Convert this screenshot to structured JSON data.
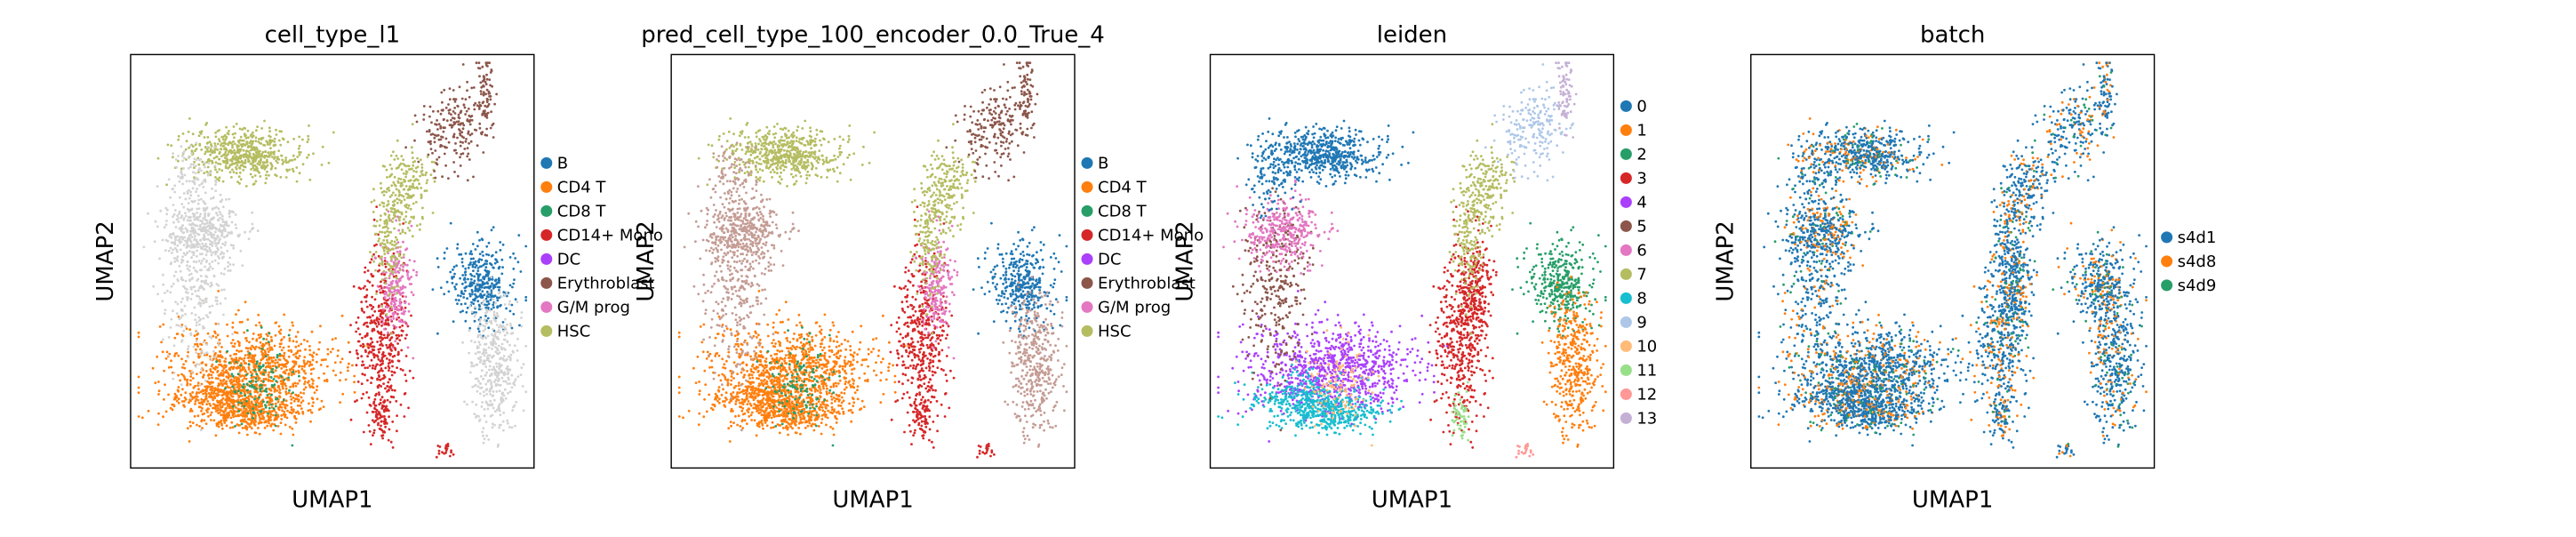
{
  "figure": {
    "x_label": "UMAP1",
    "y_label": "UMAP2"
  },
  "palettes": {
    "tab10": [
      "#1f77b4",
      "#ff7f0e",
      "#279e68",
      "#d62728",
      "#aa40fc",
      "#8c564b",
      "#e377c2",
      "#b5bd61",
      "#17becf",
      "#aec7e8",
      "#ffbb78",
      "#98df8a",
      "#ff9896",
      "#c5b0d5"
    ],
    "gray": "#d3d3d3",
    "pred_pink": "#c49c94"
  },
  "chart_data": [
    {
      "type": "scatter",
      "title": "cell_type_l1",
      "xlabel": "UMAP1",
      "ylabel": "UMAP2",
      "grid": false,
      "legend_position": "right",
      "legend": [
        "B",
        "CD4 T",
        "CD8 T",
        "CD14+ Mono",
        "DC",
        "Erythroblast",
        "G/M prog",
        "HSC"
      ],
      "legend_colors": [
        "#1f77b4",
        "#ff7f0e",
        "#279e68",
        "#d62728",
        "#aa40fc",
        "#8c564b",
        "#e377c2",
        "#b5bd61"
      ]
    },
    {
      "type": "scatter",
      "title": "pred_cell_type_100_encoder_0.0_True_4",
      "xlabel": "UMAP1",
      "ylabel": "UMAP2",
      "grid": false,
      "legend_position": "right",
      "legend": [
        "B",
        "CD4 T",
        "CD8 T",
        "CD14+ Mono",
        "DC",
        "Erythroblast",
        "G/M prog",
        "HSC"
      ],
      "legend_colors": [
        "#1f77b4",
        "#ff7f0e",
        "#279e68",
        "#d62728",
        "#aa40fc",
        "#8c564b",
        "#e377c2",
        "#b5bd61"
      ]
    },
    {
      "type": "scatter",
      "title": "leiden",
      "xlabel": "UMAP1",
      "ylabel": "UMAP2",
      "grid": false,
      "legend_position": "right",
      "legend": [
        "0",
        "1",
        "2",
        "3",
        "4",
        "5",
        "6",
        "7",
        "8",
        "9",
        "10",
        "11",
        "12",
        "13"
      ],
      "legend_colors": [
        "#1f77b4",
        "#ff7f0e",
        "#279e68",
        "#d62728",
        "#aa40fc",
        "#8c564b",
        "#e377c2",
        "#b5bd61",
        "#17becf",
        "#aec7e8",
        "#ffbb78",
        "#98df8a",
        "#ff9896",
        "#c5b0d5"
      ]
    },
    {
      "type": "scatter",
      "title": "batch",
      "xlabel": "UMAP1",
      "ylabel": "UMAP2",
      "grid": false,
      "legend_position": "right",
      "legend": [
        "s4d1",
        "s4d8",
        "s4d9"
      ],
      "legend_colors": [
        "#1f77b4",
        "#ff7f0e",
        "#279e68"
      ]
    }
  ]
}
